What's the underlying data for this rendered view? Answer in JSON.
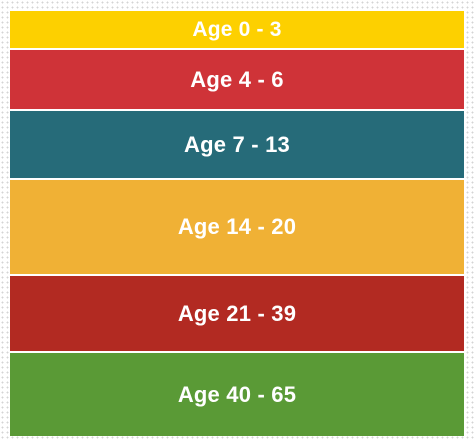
{
  "bands": [
    {
      "label": "Age 0 - 3",
      "color": "#fdd000"
    },
    {
      "label": "Age 4 - 6",
      "color": "#cf3338"
    },
    {
      "label": "Age 7 - 13",
      "color": "#266b79"
    },
    {
      "label": "Age 14 - 20",
      "color": "#f0b135"
    },
    {
      "label": "Age 21 - 39",
      "color": "#b22a22"
    },
    {
      "label": "Age 40 - 65",
      "color": "#5a9a36"
    }
  ]
}
